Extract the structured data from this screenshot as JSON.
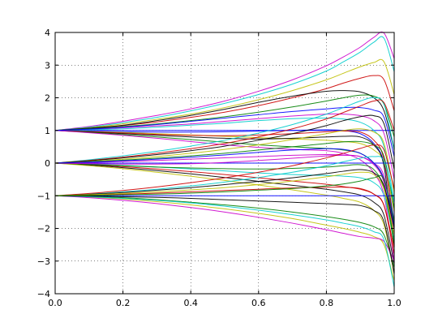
{
  "chart_data": {
    "type": "line",
    "title": "",
    "xlabel": "",
    "ylabel": "",
    "xlim": [
      0,
      1
    ],
    "ylim": [
      -4,
      4
    ],
    "grid": true,
    "legend": "none",
    "x_ticks": [
      0.0,
      0.2,
      0.4,
      0.6,
      0.8,
      1.0
    ],
    "x_tick_labels": [
      "0.0",
      "0.2",
      "0.4",
      "0.6",
      "0.8",
      "1.0"
    ],
    "y_ticks": [
      -4,
      -3,
      -2,
      -1,
      0,
      1,
      2,
      3,
      4
    ],
    "y_tick_labels": [
      "−4",
      "−3",
      "−2",
      "−1",
      "0",
      "1",
      "2",
      "3",
      "4"
    ],
    "x": [
      0.0,
      0.1,
      0.2,
      0.3,
      0.4,
      0.5,
      0.6,
      0.7,
      0.8,
      0.85,
      0.9,
      0.94,
      0.97,
      1.0
    ],
    "series": [
      {
        "color": "#cc00cc",
        "values": [
          1.0,
          1.12,
          1.28,
          1.46,
          1.66,
          1.9,
          2.2,
          2.55,
          2.98,
          3.25,
          3.55,
          3.85,
          3.98,
          3.2
        ]
      },
      {
        "color": "#00cccc",
        "values": [
          1.0,
          1.1,
          1.24,
          1.4,
          1.6,
          1.83,
          2.1,
          2.42,
          2.82,
          3.1,
          3.4,
          3.7,
          3.82,
          2.8
        ]
      },
      {
        "color": "#bfbf00",
        "values": [
          1.0,
          1.08,
          1.2,
          1.34,
          1.5,
          1.7,
          1.94,
          2.22,
          2.55,
          2.75,
          2.95,
          3.08,
          3.1,
          2.1
        ]
      },
      {
        "color": "#cc0000",
        "values": [
          1.0,
          1.06,
          1.15,
          1.26,
          1.4,
          1.56,
          1.76,
          2.0,
          2.28,
          2.45,
          2.6,
          2.68,
          2.55,
          1.6
        ]
      },
      {
        "color": "#000000",
        "values": [
          1.0,
          1.07,
          1.16,
          1.3,
          1.46,
          1.65,
          1.86,
          2.05,
          2.2,
          2.22,
          2.18,
          2.0,
          1.6,
          0.4
        ]
      },
      {
        "color": "#008000",
        "values": [
          1.0,
          1.05,
          1.12,
          1.2,
          1.3,
          1.42,
          1.56,
          1.72,
          1.9,
          2.0,
          2.08,
          2.05,
          1.8,
          0.8
        ]
      },
      {
        "color": "#0000ff",
        "values": [
          1.0,
          1.0,
          1.0,
          1.0,
          1.0,
          1.0,
          1.0,
          1.0,
          1.0,
          1.0,
          1.0,
          1.0,
          1.0,
          1.0
        ]
      },
      {
        "color": "#cc00cc",
        "values": [
          1.0,
          1.03,
          1.08,
          1.14,
          1.2,
          1.28,
          1.36,
          1.44,
          1.5,
          1.5,
          1.45,
          1.3,
          0.9,
          -0.5
        ]
      },
      {
        "color": "#00cccc",
        "values": [
          1.0,
          1.02,
          1.05,
          1.1,
          1.16,
          1.22,
          1.3,
          1.36,
          1.38,
          1.35,
          1.25,
          1.0,
          0.5,
          -1.2
        ]
      },
      {
        "color": "#0000ff",
        "values": [
          1.0,
          0.98,
          0.96,
          0.95,
          0.95,
          0.96,
          0.98,
          1.0,
          1.02,
          1.0,
          0.9,
          0.6,
          0.0,
          -1.8
        ]
      },
      {
        "color": "#bfbf00",
        "values": [
          1.0,
          0.97,
          0.94,
          0.9,
          0.86,
          0.82,
          0.78,
          0.74,
          0.7,
          0.66,
          0.6,
          0.4,
          0.0,
          -1.5
        ]
      },
      {
        "color": "#cc0000",
        "values": [
          1.0,
          0.96,
          0.92,
          0.88,
          0.85,
          0.84,
          0.86,
          0.9,
          0.96,
          0.98,
          0.95,
          0.7,
          0.1,
          -2.0
        ]
      },
      {
        "color": "#000000",
        "values": [
          1.0,
          0.95,
          0.9,
          0.85,
          0.8,
          0.76,
          0.74,
          0.76,
          0.8,
          0.82,
          0.8,
          0.55,
          -0.1,
          -2.6
        ]
      },
      {
        "color": "#008000",
        "values": [
          1.0,
          0.94,
          0.87,
          0.8,
          0.72,
          0.64,
          0.56,
          0.5,
          0.45,
          0.4,
          0.3,
          0.0,
          -0.6,
          -2.4
        ]
      },
      {
        "color": "#cc00cc",
        "values": [
          1.0,
          0.93,
          0.85,
          0.76,
          0.66,
          0.56,
          0.48,
          0.42,
          0.38,
          0.3,
          0.1,
          -0.3,
          -1.0,
          -3.0
        ]
      },
      {
        "color": "#0000ff",
        "values": [
          1.0,
          1.04,
          1.1,
          1.18,
          1.28,
          1.38,
          1.48,
          1.58,
          1.66,
          1.7,
          1.7,
          1.62,
          1.4,
          0.2
        ]
      },
      {
        "color": "#00cccc",
        "values": [
          0.0,
          0.1,
          0.22,
          0.36,
          0.52,
          0.7,
          0.92,
          1.18,
          1.5,
          1.7,
          1.9,
          2.0,
          1.8,
          0.4
        ]
      },
      {
        "color": "#cc0000",
        "values": [
          0.0,
          0.08,
          0.18,
          0.3,
          0.44,
          0.6,
          0.8,
          1.05,
          1.35,
          1.55,
          1.75,
          1.9,
          1.85,
          1.0
        ]
      },
      {
        "color": "#000000",
        "values": [
          0.0,
          0.07,
          0.16,
          0.26,
          0.38,
          0.52,
          0.7,
          0.9,
          1.15,
          1.3,
          1.42,
          1.45,
          1.2,
          -0.2
        ]
      },
      {
        "color": "#bfbf00",
        "values": [
          0.0,
          0.05,
          0.12,
          0.2,
          0.3,
          0.42,
          0.56,
          0.72,
          0.9,
          1.0,
          1.05,
          0.95,
          0.6,
          -0.9
        ]
      },
      {
        "color": "#008000",
        "values": [
          0.0,
          0.04,
          0.09,
          0.15,
          0.22,
          0.3,
          0.4,
          0.5,
          0.6,
          0.65,
          0.66,
          0.55,
          0.2,
          -1.4
        ]
      },
      {
        "color": "#0000ff",
        "values": [
          0.0,
          0.0,
          0.0,
          0.0,
          0.0,
          0.0,
          0.0,
          0.0,
          0.0,
          0.0,
          0.0,
          0.0,
          0.0,
          0.0
        ]
      },
      {
        "color": "#cc00cc",
        "values": [
          0.0,
          0.02,
          0.05,
          0.08,
          0.12,
          0.16,
          0.2,
          0.24,
          0.26,
          0.25,
          0.2,
          0.0,
          -0.4,
          -2.0
        ]
      },
      {
        "color": "#00cccc",
        "values": [
          0.0,
          -0.03,
          -0.07,
          -0.12,
          -0.18,
          -0.24,
          -0.3,
          -0.35,
          -0.38,
          -0.4,
          -0.45,
          -0.6,
          -1.0,
          -2.4
        ]
      },
      {
        "color": "#cc0000",
        "values": [
          0.0,
          -0.05,
          -0.11,
          -0.18,
          -0.26,
          -0.35,
          -0.45,
          -0.55,
          -0.65,
          -0.72,
          -0.8,
          -0.95,
          -1.3,
          -2.8
        ]
      },
      {
        "color": "#000000",
        "values": [
          0.0,
          -0.06,
          -0.14,
          -0.23,
          -0.33,
          -0.44,
          -0.56,
          -0.68,
          -0.8,
          -0.88,
          -0.98,
          -1.2,
          -1.6,
          -3.1
        ]
      },
      {
        "color": "#bfbf00",
        "values": [
          0.0,
          -0.08,
          -0.17,
          -0.28,
          -0.4,
          -0.53,
          -0.67,
          -0.82,
          -0.98,
          -1.08,
          -1.2,
          -1.45,
          -1.9,
          -3.4
        ]
      },
      {
        "color": "#008000",
        "values": [
          0.0,
          -0.04,
          -0.08,
          -0.12,
          -0.15,
          -0.17,
          -0.18,
          -0.16,
          -0.12,
          -0.08,
          -0.05,
          -0.2,
          -0.8,
          -2.5
        ]
      },
      {
        "color": "#cc00cc",
        "values": [
          0.0,
          -0.02,
          -0.03,
          -0.03,
          -0.02,
          0.02,
          0.08,
          0.15,
          0.22,
          0.24,
          0.2,
          -0.05,
          -0.6,
          -2.2
        ]
      },
      {
        "color": "#0000ff",
        "values": [
          0.0,
          0.03,
          0.07,
          0.12,
          0.18,
          0.25,
          0.33,
          0.4,
          0.44,
          0.42,
          0.3,
          0.0,
          -0.5,
          -1.9
        ]
      },
      {
        "color": "#00cccc",
        "values": [
          -1.0,
          -0.95,
          -0.88,
          -0.8,
          -0.7,
          -0.58,
          -0.44,
          -0.28,
          -0.08,
          0.04,
          0.15,
          0.2,
          0.05,
          -1.2
        ]
      },
      {
        "color": "#cc0000",
        "values": [
          -1.0,
          -0.93,
          -0.84,
          -0.73,
          -0.6,
          -0.45,
          -0.28,
          -0.08,
          0.16,
          0.3,
          0.45,
          0.55,
          0.4,
          -0.8
        ]
      },
      {
        "color": "#000000",
        "values": [
          -1.0,
          -0.96,
          -0.9,
          -0.83,
          -0.75,
          -0.66,
          -0.56,
          -0.45,
          -0.32,
          -0.25,
          -0.2,
          -0.3,
          -0.7,
          -2.0
        ]
      },
      {
        "color": "#bfbf00",
        "values": [
          -1.0,
          -1.04,
          -1.1,
          -1.18,
          -1.28,
          -1.4,
          -1.54,
          -1.7,
          -1.9,
          -2.0,
          -2.12,
          -2.25,
          -2.5,
          -3.6
        ]
      },
      {
        "color": "#008000",
        "values": [
          -1.0,
          -1.02,
          -1.06,
          -1.12,
          -1.2,
          -1.28,
          -1.38,
          -1.5,
          -1.64,
          -1.72,
          -1.82,
          -1.95,
          -2.2,
          -3.2
        ]
      },
      {
        "color": "#0000ff",
        "values": [
          -1.0,
          -1.0,
          -1.0,
          -1.0,
          -1.0,
          -1.0,
          -1.0,
          -1.0,
          -1.0,
          -1.0,
          -1.0,
          -1.0,
          -1.0,
          -1.0
        ]
      },
      {
        "color": "#cc00cc",
        "values": [
          -1.0,
          -1.06,
          -1.14,
          -1.24,
          -1.36,
          -1.5,
          -1.66,
          -1.84,
          -2.04,
          -2.15,
          -2.25,
          -2.3,
          -2.4,
          -3.0
        ]
      },
      {
        "color": "#00cccc",
        "values": [
          -1.0,
          -1.03,
          -1.08,
          -1.14,
          -1.22,
          -1.32,
          -1.44,
          -1.58,
          -1.74,
          -1.84,
          -1.95,
          -2.1,
          -2.35,
          -3.8
        ]
      },
      {
        "color": "#cc0000",
        "values": [
          -1.0,
          -0.98,
          -0.95,
          -0.92,
          -0.88,
          -0.84,
          -0.8,
          -0.76,
          -0.74,
          -0.74,
          -0.78,
          -0.95,
          -1.3,
          -2.6
        ]
      },
      {
        "color": "#000000",
        "values": [
          -1.0,
          -1.01,
          -1.03,
          -1.05,
          -1.08,
          -1.12,
          -1.16,
          -1.2,
          -1.24,
          -1.26,
          -1.3,
          -1.45,
          -1.8,
          -3.4
        ]
      },
      {
        "color": "#bfbf00",
        "values": [
          -1.0,
          -0.97,
          -0.93,
          -0.88,
          -0.82,
          -0.75,
          -0.66,
          -0.55,
          -0.42,
          -0.34,
          -0.28,
          -0.35,
          -0.8,
          -2.2
        ]
      },
      {
        "color": "#008000",
        "values": [
          -1.0,
          -0.99,
          -0.97,
          -0.95,
          -0.92,
          -0.88,
          -0.83,
          -0.78,
          -0.7,
          -0.64,
          -0.55,
          -0.45,
          -0.5,
          -1.8
        ]
      }
    ]
  }
}
